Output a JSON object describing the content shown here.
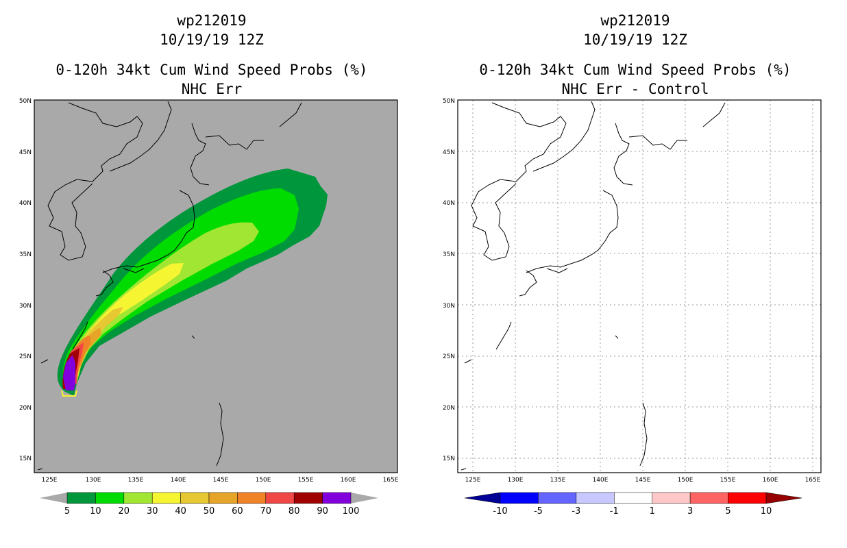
{
  "left": {
    "title_storm": "wp212019",
    "title_date": "10/19/19 12Z",
    "title_product": "0-120h 34kt Cum Wind Speed Probs (%)",
    "title_subtitle": "NHC Err",
    "lat_labels": [
      "50N",
      "45N",
      "40N",
      "35N",
      "30N",
      "25N",
      "20N",
      "15N"
    ],
    "lon_labels": [
      "125E",
      "130E",
      "135E",
      "140E",
      "145E",
      "150E",
      "155E",
      "160E",
      "165E"
    ],
    "colorbar": {
      "labels": [
        "5",
        "10",
        "20",
        "30",
        "40",
        "50",
        "60",
        "70",
        "80",
        "90",
        "100"
      ],
      "colors": [
        "#00963c",
        "#00dc00",
        "#a0e632",
        "#f5f532",
        "#e6c832",
        "#e6a528",
        "#f08228",
        "#f04646",
        "#a00000",
        "#8200dc"
      ]
    }
  },
  "right": {
    "title_storm": "wp212019",
    "title_date": "10/19/19 12Z",
    "title_product": "0-120h 34kt Cum Wind Speed Probs (%)",
    "title_subtitle": "NHC Err - Control",
    "lat_labels": [
      "50N",
      "45N",
      "40N",
      "35N",
      "30N",
      "25N",
      "20N",
      "15N"
    ],
    "lon_labels": [
      "125E",
      "130E",
      "135E",
      "140E",
      "145E",
      "150E",
      "155E",
      "160E",
      "165E"
    ],
    "colorbar": {
      "labels": [
        "-10",
        "-5",
        "-3",
        "-1",
        "1",
        "3",
        "5",
        "10"
      ],
      "colors": [
        "#000096",
        "#0000ff",
        "#6464ff",
        "#c8c8ff",
        "#ffffff",
        "#ffc8c8",
        "#ff6464",
        "#ff0000",
        "#960000"
      ]
    }
  }
}
